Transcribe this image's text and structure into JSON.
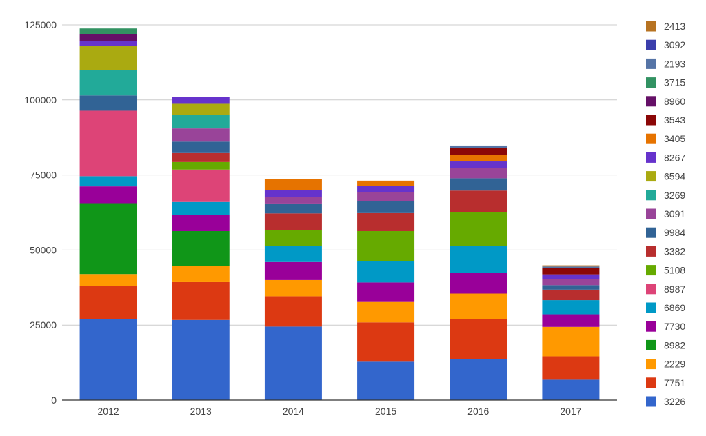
{
  "chart_data": {
    "type": "bar",
    "stacked": true,
    "categories": [
      "2012",
      "2013",
      "2014",
      "2015",
      "2016",
      "2017"
    ],
    "ylim": [
      0,
      125000
    ],
    "yticks": [
      "0",
      "25000",
      "50000",
      "75000",
      "100000",
      "125000"
    ],
    "grid": true,
    "legend_position": "right",
    "series": [
      {
        "name": "3226",
        "color": "#3366cc",
        "values": [
          27000,
          26700,
          24500,
          12800,
          13700,
          6800
        ]
      },
      {
        "name": "7751",
        "color": "#dc3912",
        "values": [
          11000,
          12600,
          10100,
          13100,
          13400,
          7800
        ]
      },
      {
        "name": "2229",
        "color": "#ff9900",
        "values": [
          4000,
          5400,
          5400,
          6800,
          8400,
          9800
        ]
      },
      {
        "name": "8982",
        "color": "#109618",
        "values": [
          23600,
          11600,
          0,
          0,
          0,
          0
        ]
      },
      {
        "name": "7730",
        "color": "#990099",
        "values": [
          5600,
          5500,
          6000,
          6500,
          6800,
          4200
        ]
      },
      {
        "name": "6869",
        "color": "#0099c6",
        "values": [
          3400,
          4200,
          5400,
          7100,
          9100,
          4700
        ]
      },
      {
        "name": "8987",
        "color": "#dd4477",
        "values": [
          21800,
          10800,
          0,
          0,
          0,
          0
        ]
      },
      {
        "name": "5108",
        "color": "#66aa00",
        "values": [
          0,
          2500,
          5300,
          10000,
          11300,
          0
        ]
      },
      {
        "name": "3382",
        "color": "#b82e2e",
        "values": [
          0,
          3000,
          5500,
          6000,
          7100,
          3500
        ]
      },
      {
        "name": "9984",
        "color": "#316395",
        "values": [
          5100,
          3800,
          3300,
          4100,
          4100,
          1500
        ]
      },
      {
        "name": "3091",
        "color": "#994499",
        "values": [
          0,
          4400,
          2100,
          2800,
          3400,
          2000
        ]
      },
      {
        "name": "3269",
        "color": "#22aa99",
        "values": [
          8400,
          4400,
          0,
          0,
          0,
          0
        ]
      },
      {
        "name": "6594",
        "color": "#aaaa11",
        "values": [
          8200,
          3800,
          0,
          0,
          0,
          0
        ]
      },
      {
        "name": "8267",
        "color": "#6633cc",
        "values": [
          1500,
          2400,
          2300,
          2100,
          2200,
          1600
        ]
      },
      {
        "name": "3405",
        "color": "#e67300",
        "values": [
          0,
          0,
          3800,
          1800,
          2300,
          0
        ]
      },
      {
        "name": "3543",
        "color": "#8b0707",
        "values": [
          0,
          0,
          0,
          0,
          2300,
          2000
        ]
      },
      {
        "name": "8960",
        "color": "#651067",
        "values": [
          2300,
          0,
          0,
          0,
          0,
          0
        ]
      },
      {
        "name": "3715",
        "color": "#329262",
        "values": [
          1900,
          0,
          0,
          0,
          0,
          0
        ]
      },
      {
        "name": "2193",
        "color": "#5574a6",
        "values": [
          0,
          0,
          0,
          0,
          700,
          600
        ]
      },
      {
        "name": "3092",
        "color": "#3b3eac",
        "values": [
          0,
          0,
          0,
          0,
          0,
          0
        ]
      },
      {
        "name": "2413",
        "color": "#b77322",
        "values": [
          0,
          0,
          0,
          0,
          0,
          400
        ]
      }
    ]
  }
}
